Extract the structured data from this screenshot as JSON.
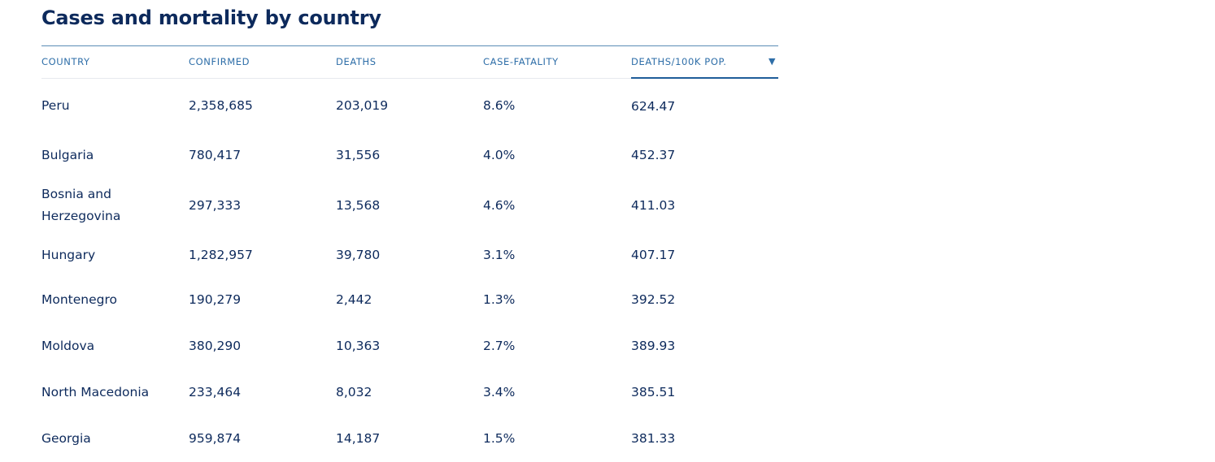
{
  "title": "Cases and mortality by country",
  "columns": [
    {
      "label": "COUNTRY"
    },
    {
      "label": "CONFIRMED"
    },
    {
      "label": "DEATHS"
    },
    {
      "label": "CASE-FATALITY"
    },
    {
      "label": "DEATHS/100K POP.",
      "sorted": "descending"
    }
  ],
  "sort_icon": "triangle-down-icon",
  "rows": [
    {
      "country": "Peru",
      "confirmed": "2,358,685",
      "deaths": "203,019",
      "case_fatality": "8.6%",
      "deaths_per_100k": "624.47"
    },
    {
      "country": "Bulgaria",
      "confirmed": "780,417",
      "deaths": "31,556",
      "case_fatality": "4.0%",
      "deaths_per_100k": "452.37"
    },
    {
      "country": "Bosnia and Herzegovina",
      "confirmed": "297,333",
      "deaths": "13,568",
      "case_fatality": "4.6%",
      "deaths_per_100k": "411.03"
    },
    {
      "country": "Hungary",
      "confirmed": "1,282,957",
      "deaths": "39,780",
      "case_fatality": "3.1%",
      "deaths_per_100k": "407.17"
    },
    {
      "country": "Montenegro",
      "confirmed": "190,279",
      "deaths": "2,442",
      "case_fatality": "1.3%",
      "deaths_per_100k": "392.52"
    },
    {
      "country": "Moldova",
      "confirmed": "380,290",
      "deaths": "10,363",
      "case_fatality": "2.7%",
      "deaths_per_100k": "389.93"
    },
    {
      "country": "North Macedonia",
      "confirmed": "233,464",
      "deaths": "8,032",
      "case_fatality": "3.4%",
      "deaths_per_100k": "385.51"
    },
    {
      "country": "Georgia",
      "confirmed": "959,874",
      "deaths": "14,187",
      "case_fatality": "1.5%",
      "deaths_per_100k": "381.33"
    }
  ],
  "colors": {
    "title": "#0d2a5c",
    "header": "#2e6ea8",
    "text": "#0d2a5c",
    "sorted_underline": "#1f5d99"
  }
}
